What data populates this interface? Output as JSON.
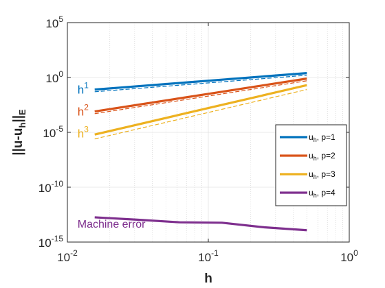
{
  "chart_data": {
    "type": "line",
    "xscale": "log",
    "yscale": "log",
    "xlim": [
      0.01,
      1
    ],
    "ylim": [
      1e-15,
      100000.0
    ],
    "xlabel": "h",
    "ylabel": "||u-u_h||_E",
    "grid": true,
    "minor_grid": true,
    "legend_location": "right",
    "x_ticks": [
      {
        "value": 0.01,
        "base": "10",
        "exp": "-2"
      },
      {
        "value": 0.1,
        "base": "10",
        "exp": "-1"
      },
      {
        "value": 1,
        "base": "10",
        "exp": "0"
      }
    ],
    "y_ticks": [
      {
        "value": 100000.0,
        "base": "10",
        "exp": "5"
      },
      {
        "value": 1,
        "base": "10",
        "exp": "0"
      },
      {
        "value": 1e-05,
        "base": "10",
        "exp": "-5"
      },
      {
        "value": 1e-10,
        "base": "10",
        "exp": "-10"
      },
      {
        "value": 1e-15,
        "base": "10",
        "exp": "-15"
      }
    ],
    "x": [
      0.015625,
      0.03125,
      0.0625,
      0.125,
      0.25,
      0.5
    ],
    "series": [
      {
        "name": "u_h, p=1",
        "legend_main": "u",
        "legend_sub": "h",
        "legend_rest": ", p=1",
        "color": "#0072BD",
        "values": [
          0.079,
          0.158,
          0.316,
          0.63,
          1.26,
          2.5
        ]
      },
      {
        "name": "u_h, p=2",
        "legend_main": "u",
        "legend_sub": "h",
        "legend_rest": ", p=2",
        "color": "#D95319",
        "values": [
          0.000794,
          0.00316,
          0.0126,
          0.05,
          0.2,
          0.79
        ]
      },
      {
        "name": "u_h, p=3",
        "legend_main": "u",
        "legend_sub": "h",
        "legend_rest": ", p=3",
        "color": "#EDB120",
        "values": [
          6.3e-06,
          5e-05,
          0.0004,
          0.0032,
          0.0251,
          0.2
        ]
      },
      {
        "name": "u_h, p=4",
        "legend_main": "u",
        "legend_sub": "h",
        "legend_rest": ", p=4",
        "color": "#7E2F8E",
        "values": [
          1.8e-13,
          1.1e-13,
          6.3e-14,
          5.8e-14,
          2.2e-14,
          1.2e-14
        ]
      }
    ],
    "reference_lines": [
      {
        "color": "#0072BD",
        "x": [
          0.015625,
          0.5
        ],
        "values": [
          0.05,
          1.6
        ]
      },
      {
        "color": "#D95319",
        "x": [
          0.015625,
          0.5
        ],
        "values": [
          0.0005,
          0.5
        ]
      },
      {
        "color": "#EDB120",
        "x": [
          0.015625,
          0.5
        ],
        "values": [
          2.5e-06,
          0.08
        ]
      }
    ],
    "annotations": [
      {
        "base": "h",
        "exp": "1",
        "color": "#0072BD",
        "x": 0.0118,
        "y": 0.08
      },
      {
        "base": "h",
        "exp": "2",
        "color": "#D95319",
        "x": 0.0118,
        "y": 0.0008
      },
      {
        "base": "h",
        "exp": "3",
        "color": "#EDB120",
        "x": 0.0118,
        "y": 8e-06
      },
      {
        "text": "Machine error",
        "color": "#7E2F8E",
        "x": 0.0118,
        "y": 5e-14
      }
    ]
  }
}
